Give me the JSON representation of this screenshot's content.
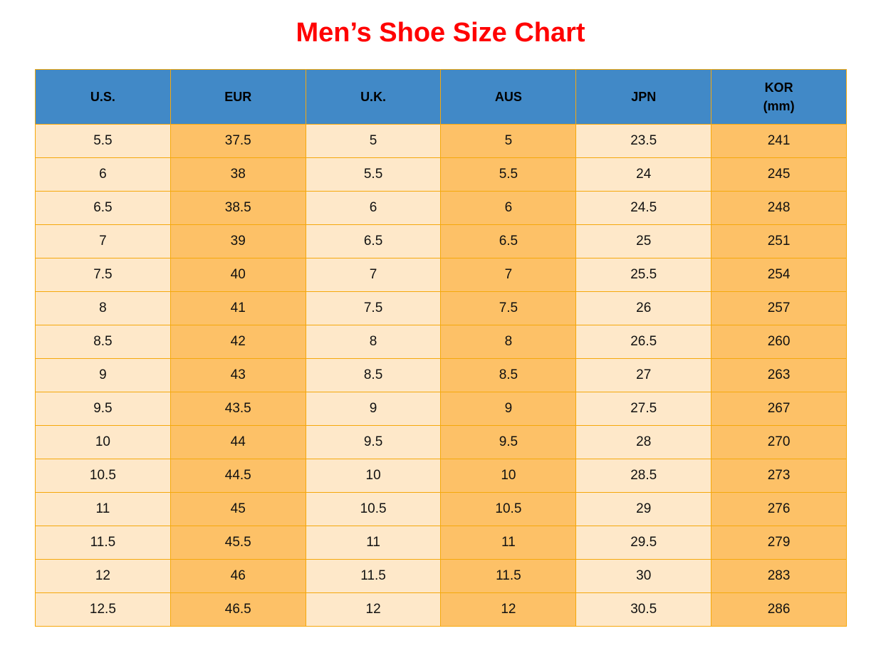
{
  "title": "Men’s Shoe Size Chart",
  "columns": [
    {
      "label": "U.S.",
      "sub": ""
    },
    {
      "label": "EUR",
      "sub": ""
    },
    {
      "label": "U.K.",
      "sub": ""
    },
    {
      "label": "AUS",
      "sub": ""
    },
    {
      "label": "JPN",
      "sub": ""
    },
    {
      "label": "KOR",
      "sub": "(mm)"
    }
  ],
  "rows": [
    [
      "5.5",
      "37.5",
      "5",
      "5",
      "23.5",
      "241"
    ],
    [
      "6",
      "38",
      "5.5",
      "5.5",
      "24",
      "245"
    ],
    [
      "6.5",
      "38.5",
      "6",
      "6",
      "24.5",
      "248"
    ],
    [
      "7",
      "39",
      "6.5",
      "6.5",
      "25",
      "251"
    ],
    [
      "7.5",
      "40",
      "7",
      "7",
      "25.5",
      "254"
    ],
    [
      "8",
      "41",
      "7.5",
      "7.5",
      "26",
      "257"
    ],
    [
      "8.5",
      "42",
      "8",
      "8",
      "26.5",
      "260"
    ],
    [
      "9",
      "43",
      "8.5",
      "8.5",
      "27",
      "263"
    ],
    [
      "9.5",
      "43.5",
      "9",
      "9",
      "27.5",
      "267"
    ],
    [
      "10",
      "44",
      "9.5",
      "9.5",
      "28",
      "270"
    ],
    [
      "10.5",
      "44.5",
      "10",
      "10",
      "28.5",
      "273"
    ],
    [
      "11",
      "45",
      "10.5",
      "10.5",
      "29",
      "276"
    ],
    [
      "11.5",
      "45.5",
      "11",
      "11",
      "29.5",
      "279"
    ],
    [
      "12",
      "46",
      "11.5",
      "11.5",
      "30",
      "283"
    ],
    [
      "12.5",
      "46.5",
      "12",
      "12",
      "30.5",
      "286"
    ]
  ],
  "colors": {
    "title": "#ff0000",
    "header": "#4189c7",
    "light_cell": "#fee8c9",
    "dark_cell": "#fdc167",
    "border": "#f5a80c"
  }
}
